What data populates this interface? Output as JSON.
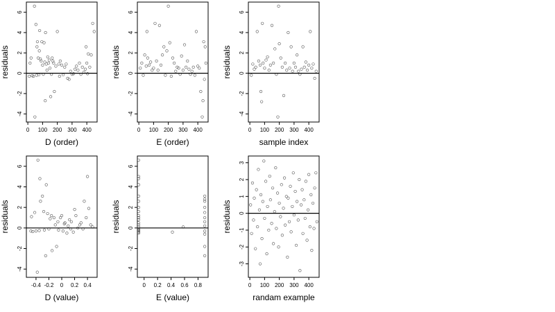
{
  "chart_data": [
    {
      "type": "scatter",
      "xlabel": "D (order)",
      "ylabel": "residuals",
      "xlim": [
        -10,
        470
      ],
      "ylim": [
        -4.8,
        7.0
      ],
      "xticks": [
        0,
        100,
        200,
        300,
        400
      ],
      "yticks": [
        -4,
        -2,
        0,
        2,
        4,
        6
      ],
      "hline": 0,
      "x": [
        10,
        15,
        22,
        30,
        38,
        45,
        48,
        55,
        60,
        62,
        65,
        70,
        75,
        78,
        80,
        85,
        90,
        95,
        100,
        105,
        110,
        115,
        118,
        120,
        125,
        130,
        135,
        140,
        145,
        150,
        155,
        160,
        165,
        170,
        175,
        180,
        190,
        200,
        210,
        215,
        220,
        230,
        240,
        250,
        260,
        270,
        280,
        290,
        300,
        310,
        320,
        330,
        340,
        350,
        360,
        370,
        380,
        390,
        395,
        400,
        405,
        410,
        420,
        430,
        440,
        450
      ],
      "y": [
        -0.3,
        1.0,
        1.5,
        -0.25,
        -0.3,
        6.6,
        -4.3,
        4.8,
        -0.2,
        2.6,
        3.1,
        1.5,
        -0.15,
        2.2,
        4.2,
        1.4,
        1.2,
        3.1,
        0.8,
        -0.1,
        3.0,
        1.1,
        -2.7,
        4.0,
        0.9,
        0.3,
        1.6,
        1.0,
        1.3,
        0.5,
        -2.3,
        -0.1,
        1.5,
        1.2,
        1.0,
        -1.8,
        0.7,
        4.1,
        0.9,
        -0.3,
        1.2,
        0.8,
        -0.15,
        0.6,
        0.9,
        -0.5,
        -0.6,
        0.2,
        -0.1,
        -0.05,
        0.4,
        0.7,
        0.3,
        1.0,
        -0.1,
        0.6,
        0.1,
        0.4,
        2.6,
        1.0,
        -0.05,
        1.9,
        0.6,
        1.8,
        4.9,
        4.1
      ]
    },
    {
      "type": "scatter",
      "xlabel": "E (order)",
      "ylabel": "residuals",
      "xlim": [
        -10,
        470
      ],
      "ylim": [
        -4.8,
        7.0
      ],
      "xticks": [
        0,
        100,
        200,
        300,
        400
      ],
      "yticks": [
        -4,
        -2,
        0,
        2,
        4,
        6
      ],
      "hline": 0,
      "x": [
        10,
        20,
        30,
        40,
        50,
        55,
        60,
        70,
        80,
        90,
        100,
        110,
        120,
        130,
        140,
        150,
        160,
        170,
        180,
        190,
        200,
        210,
        220,
        230,
        240,
        250,
        260,
        270,
        280,
        290,
        300,
        310,
        320,
        330,
        340,
        350,
        360,
        370,
        380,
        390,
        400,
        410,
        420,
        430,
        435,
        440,
        445,
        450,
        455
      ],
      "y": [
        0.5,
        1.0,
        -0.2,
        1.8,
        0.7,
        4.1,
        1.5,
        0.8,
        1.1,
        0.3,
        0.5,
        4.9,
        1.2,
        0.3,
        4.7,
        0.8,
        1.8,
        2.6,
        -0.2,
        2.2,
        6.6,
        3.0,
        -0.3,
        1.5,
        1.0,
        0.2,
        0.6,
        0.5,
        -0.1,
        1.7,
        0.3,
        2.8,
        0.6,
        1.2,
        0.4,
        -0.1,
        0.2,
        0.6,
        -0.2,
        4.1,
        0.7,
        0.5,
        -1.8,
        -4.3,
        -2.7,
        3.1,
        -0.6,
        2.6,
        1.0
      ]
    },
    {
      "type": "scatter",
      "xlabel": "sample index",
      "ylabel": "residuals",
      "xlim": [
        -10,
        470
      ],
      "ylim": [
        -4.8,
        7.0
      ],
      "xticks": [
        0,
        100,
        200,
        300,
        400
      ],
      "yticks": [
        -4,
        -2,
        0,
        2,
        4,
        6
      ],
      "hline": 0,
      "x": [
        10,
        20,
        30,
        40,
        50,
        60,
        70,
        75,
        80,
        85,
        90,
        100,
        110,
        120,
        130,
        140,
        150,
        160,
        170,
        180,
        190,
        195,
        200,
        210,
        220,
        230,
        240,
        250,
        260,
        270,
        280,
        290,
        300,
        310,
        320,
        330,
        340,
        350,
        360,
        370,
        380,
        390,
        400,
        410,
        420,
        430,
        440,
        450
      ],
      "y": [
        -0.2,
        0.9,
        0.4,
        0.6,
        4.1,
        1.2,
        0.8,
        -1.8,
        -2.8,
        4.9,
        1.0,
        0.5,
        1.3,
        1.6,
        0.3,
        0.8,
        4.7,
        1.0,
        2.4,
        -0.1,
        -4.3,
        6.6,
        2.9,
        1.5,
        0.6,
        -2.2,
        1.0,
        0.3,
        4.0,
        0.5,
        2.6,
        0.2,
        1.0,
        0.6,
        1.8,
        0.2,
        -0.1,
        0.4,
        2.6,
        0.6,
        1.1,
        0.3,
        0.8,
        4.1,
        0.5,
        0.9,
        -0.5,
        0.2
      ]
    },
    {
      "type": "scatter",
      "xlabel": "D (value)",
      "ylabel": "residuals",
      "xlim": [
        -0.55,
        0.55
      ],
      "ylim": [
        -4.8,
        7.0
      ],
      "xticks": [
        -0.4,
        -0.2,
        0.0,
        0.2,
        0.4
      ],
      "yticks": [
        -4,
        -2,
        0,
        2,
        4,
        6
      ],
      "hline": 0,
      "x": [
        -0.48,
        -0.47,
        -0.45,
        -0.42,
        -0.4,
        -0.38,
        -0.37,
        -0.35,
        -0.34,
        -0.33,
        -0.3,
        -0.28,
        -0.27,
        -0.25,
        -0.24,
        -0.22,
        -0.2,
        -0.18,
        -0.16,
        -0.15,
        -0.12,
        -0.1,
        -0.08,
        -0.06,
        -0.05,
        -0.02,
        0.0,
        0.02,
        0.04,
        0.05,
        0.08,
        0.1,
        0.12,
        0.14,
        0.15,
        0.18,
        0.2,
        0.22,
        0.25,
        0.28,
        0.3,
        0.33,
        0.35,
        0.38,
        0.4,
        0.42,
        0.45,
        0.48
      ],
      "y": [
        -0.3,
        1.1,
        -0.35,
        1.5,
        -0.3,
        -4.3,
        6.6,
        -0.25,
        4.8,
        2.6,
        3.1,
        1.6,
        -0.2,
        -2.7,
        4.2,
        1.4,
        -0.1,
        0.9,
        1.2,
        -2.2,
        1.0,
        0.3,
        -1.8,
        0.6,
        -0.2,
        1.0,
        1.2,
        -0.3,
        0.4,
        0.5,
        -0.5,
        0.2,
        0.8,
        -0.1,
        0.6,
        -0.4,
        1.8,
        1.2,
        0.0,
        0.3,
        0.5,
        -0.1,
        2.6,
        1.0,
        5.0,
        1.9,
        0.3,
        0.1
      ]
    },
    {
      "type": "scatter",
      "xlabel": "E (value)",
      "ylabel": "residuals",
      "xlim": [
        -0.1,
        0.95
      ],
      "ylim": [
        -4.8,
        7.0
      ],
      "xticks": [
        0.0,
        0.2,
        0.4,
        0.6,
        0.8
      ],
      "yticks": [
        -4,
        -2,
        0,
        2,
        4,
        6
      ],
      "hline": 0,
      "x": [
        -0.08,
        -0.08,
        -0.08,
        -0.08,
        -0.08,
        -0.08,
        -0.08,
        -0.08,
        -0.08,
        -0.08,
        -0.08,
        -0.08,
        -0.08,
        -0.08,
        -0.08,
        -0.08,
        -0.08,
        -0.08,
        -0.08,
        -0.08,
        0.42,
        0.58,
        0.9,
        0.9,
        0.9,
        0.9,
        0.9,
        0.9,
        0.9,
        0.9,
        0.9,
        0.9,
        0.9,
        0.9
      ],
      "y": [
        6.6,
        5.0,
        4.8,
        4.2,
        3.1,
        2.6,
        2.0,
        1.6,
        1.2,
        1.0,
        0.8,
        0.5,
        0.3,
        0.1,
        -0.1,
        -0.2,
        -0.3,
        -0.4,
        -0.5,
        -0.2,
        -0.4,
        0.1,
        3.1,
        2.8,
        2.6,
        2.0,
        1.5,
        1.0,
        0.6,
        0.2,
        -0.3,
        -0.6,
        -1.8,
        -2.7
      ]
    },
    {
      "type": "scatter",
      "xlabel": "randam example",
      "ylabel": "residuals",
      "xlim": [
        -10,
        470
      ],
      "ylim": [
        -3.8,
        3.4
      ],
      "xticks": [
        0,
        100,
        200,
        300,
        400
      ],
      "yticks": [
        -3,
        -2,
        -1,
        0,
        1,
        2,
        3
      ],
      "hline": 0,
      "x": [
        5,
        12,
        18,
        25,
        30,
        38,
        45,
        52,
        58,
        65,
        70,
        75,
        82,
        88,
        95,
        100,
        108,
        115,
        120,
        128,
        135,
        140,
        148,
        155,
        160,
        168,
        175,
        180,
        188,
        195,
        200,
        208,
        215,
        220,
        228,
        235,
        240,
        248,
        255,
        260,
        268,
        275,
        280,
        288,
        295,
        300,
        308,
        315,
        320,
        328,
        335,
        340,
        348,
        355,
        360,
        368,
        375,
        380,
        388,
        395,
        400,
        408,
        415,
        420,
        428,
        435,
        440,
        448,
        455
      ],
      "y": [
        0.5,
        -1.2,
        1.8,
        -0.4,
        0.9,
        -2.1,
        1.4,
        -0.8,
        2.6,
        0.2,
        -3.0,
        1.1,
        -1.5,
        0.7,
        3.1,
        -0.3,
        1.9,
        -2.4,
        0.4,
        -1.0,
        2.2,
        0.8,
        -0.6,
        1.5,
        -1.8,
        0.1,
        2.7,
        -0.9,
        1.2,
        -2.0,
        0.6,
        -0.2,
        1.7,
        -1.3,
        0.3,
        2.1,
        -0.7,
        1.0,
        -2.6,
        0.9,
        -0.5,
        1.6,
        -1.1,
        0.4,
        2.4,
        -0.1,
        1.3,
        -1.9,
        0.7,
        -0.4,
        2.0,
        -3.4,
        0.5,
        1.4,
        -1.2,
        0.8,
        -0.3,
        1.9,
        -1.6,
        0.2,
        2.3,
        -0.8,
        1.1,
        -2.2,
        0.6,
        -0.9,
        1.5,
        2.4,
        -0.5
      ]
    }
  ]
}
